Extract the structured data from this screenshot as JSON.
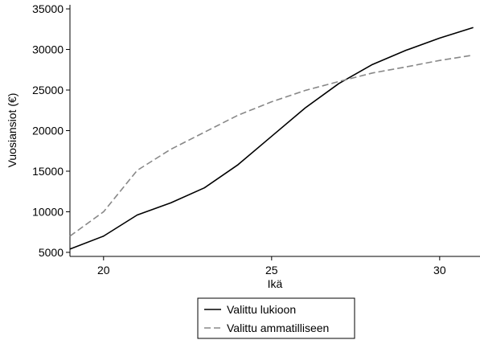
{
  "chart_data": {
    "type": "line",
    "xlabel": "Ikä",
    "ylabel": "Vuosiansiot (€)",
    "xlim": [
      19,
      31.2
    ],
    "ylim": [
      4500,
      35500
    ],
    "xticks": [
      20,
      25,
      30
    ],
    "yticks": [
      5000,
      10000,
      15000,
      20000,
      25000,
      30000,
      35000
    ],
    "grid": false,
    "legend_position": "bottom",
    "x": [
      19,
      20,
      21,
      22,
      23,
      24,
      25,
      26,
      27,
      28,
      29,
      30,
      31
    ],
    "series": [
      {
        "name": "Valittu lukioon",
        "color": "#000000",
        "style": "solid",
        "values": [
          5400,
          7000,
          9600,
          11100,
          12950,
          15800,
          19300,
          22800,
          25800,
          28150,
          29900,
          31400,
          32700
        ]
      },
      {
        "name": "Valittu ammatilliseen",
        "color": "#888888",
        "style": "dashed",
        "values": [
          7000,
          10000,
          15100,
          17700,
          19800,
          21900,
          23550,
          24950,
          26050,
          27100,
          27850,
          28650,
          29300
        ]
      }
    ]
  }
}
